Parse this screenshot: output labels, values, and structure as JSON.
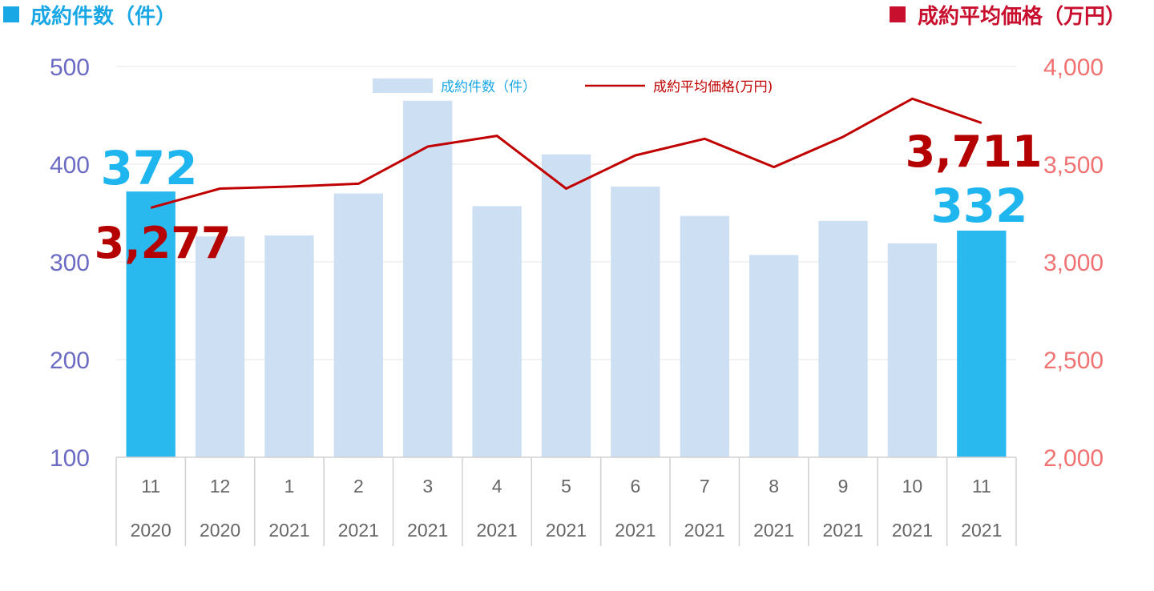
{
  "header": {
    "left_label": "成約件数（件）",
    "right_label": "成約平均価格（万円）",
    "left_color": "#1aa7e6",
    "right_color": "#c8102e"
  },
  "chart_data": {
    "type": "bar",
    "categories": [
      {
        "month": "11",
        "year": "2020"
      },
      {
        "month": "12",
        "year": "2020"
      },
      {
        "month": "1",
        "year": "2021"
      },
      {
        "month": "2",
        "year": "2021"
      },
      {
        "month": "3",
        "year": "2021"
      },
      {
        "month": "4",
        "year": "2021"
      },
      {
        "month": "5",
        "year": "2021"
      },
      {
        "month": "6",
        "year": "2021"
      },
      {
        "month": "7",
        "year": "2021"
      },
      {
        "month": "8",
        "year": "2021"
      },
      {
        "month": "9",
        "year": "2021"
      },
      {
        "month": "10",
        "year": "2021"
      },
      {
        "month": "11",
        "year": "2021"
      }
    ],
    "series": [
      {
        "name": "成約件数（件）",
        "type": "bar",
        "axis": "left",
        "values": [
          372,
          326,
          327,
          370,
          465,
          357,
          410,
          377,
          347,
          307,
          342,
          319,
          332
        ],
        "color": "#cddff3",
        "highlight_color": "#29b9ee",
        "highlight_indices": [
          0,
          12
        ]
      },
      {
        "name": "成約平均価格(万円)",
        "type": "line",
        "axis": "right",
        "values": [
          3277,
          3375,
          3385,
          3400,
          3590,
          3645,
          3375,
          3545,
          3630,
          3485,
          3640,
          3835,
          3711
        ],
        "color": "#c00000"
      }
    ],
    "y_left": {
      "min": 100,
      "max": 500,
      "ticks": [
        "100",
        "200",
        "300",
        "400",
        "500"
      ]
    },
    "y_right": {
      "min": 2000,
      "max": 4000,
      "ticks": [
        "2,000",
        "2,500",
        "3,000",
        "3,500",
        "4,000"
      ]
    },
    "annotations": {
      "bar_first": "372",
      "bar_last": "332",
      "line_first": "3,277",
      "line_last": "3,711"
    },
    "legend_position": "top-center",
    "grid": true
  }
}
